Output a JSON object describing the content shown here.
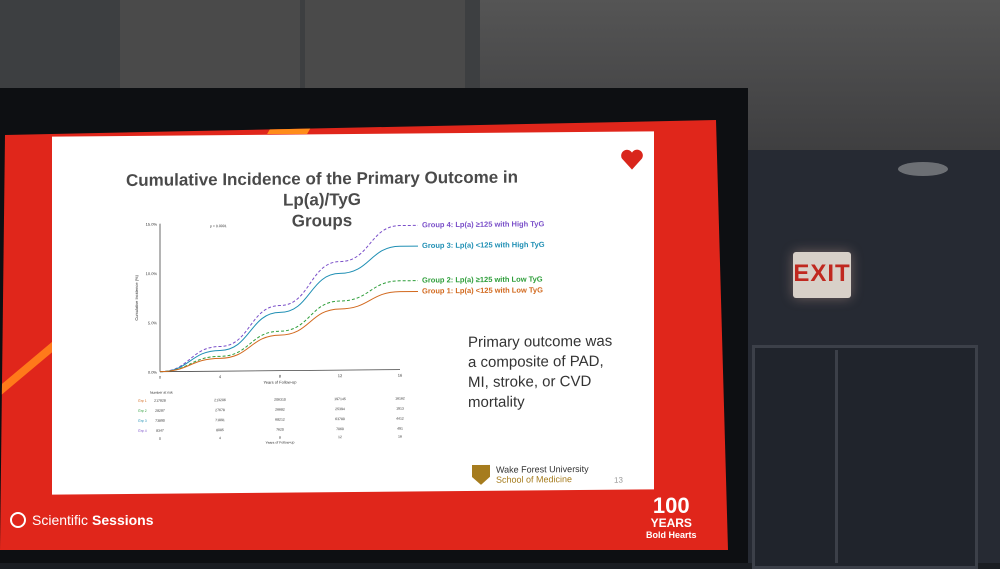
{
  "slide": {
    "title_line1": "Cumulative Incidence of the Primary Outcome in Lp(a)/TyG",
    "title_line2": "Groups",
    "outcome_text": [
      "Primary outcome was",
      "a composite of PAD,",
      "MI, stroke, or CVD",
      "mortality"
    ],
    "logo_university": "Wake Forest University",
    "logo_school": "School of Medicine",
    "page_number": "13"
  },
  "footer": {
    "brand_light": "Scientific",
    "brand_bold": "Sessions",
    "badge_line1": "100",
    "badge_line2": "YEARS",
    "badge_line3": "Bold Hearts"
  },
  "room": {
    "exit_sign": "EXIT"
  },
  "chart_data": {
    "type": "line",
    "ylabel": "Cumulative Incidence (%)",
    "xlabel": "Years of Follow-up",
    "pvalue": "p < 0.0001",
    "x": [
      0,
      4,
      8,
      12,
      16
    ],
    "x_ticks": [
      "0",
      "4",
      "8",
      "12",
      "16"
    ],
    "y_ticks": [
      "0.0%",
      "5.0%",
      "10.0%",
      "15.0%"
    ],
    "ylim": [
      0,
      15
    ],
    "series": [
      {
        "name": "Group 4: Lp(a) ≥125 with High TyG",
        "color": "#7a4fc9",
        "dash": true,
        "values": [
          0,
          2.5,
          6.6,
          11.0,
          14.6
        ]
      },
      {
        "name": "Group 3: Lp(a) <125 with High TyG",
        "color": "#1f8fb4",
        "dash": false,
        "values": [
          0,
          2.1,
          5.9,
          9.8,
          12.5
        ]
      },
      {
        "name": "Group 2: Lp(a) ≥125 with Low TyG",
        "color": "#2e9e3a",
        "dash": true,
        "values": [
          0,
          1.5,
          4.0,
          7.0,
          9.0
        ]
      },
      {
        "name": "Group 1: Lp(a) <125 with Low TyG",
        "color": "#d2691e",
        "dash": false,
        "values": [
          0,
          1.3,
          3.6,
          6.2,
          7.9
        ]
      }
    ],
    "risk_table": {
      "title": "Number at risk",
      "rows": [
        {
          "label": "Grp 1",
          "color": "#d2691e",
          "values": [
            "217828",
            "213206",
            "206310",
            "197145",
            "16162"
          ]
        },
        {
          "label": "Grp 2",
          "color": "#2e9e3a",
          "values": [
            "28287",
            "27678",
            "26682",
            "25394",
            "1913"
          ]
        },
        {
          "label": "Grp 3",
          "color": "#1f8fb4",
          "values": [
            "73890",
            "71891",
            "68212",
            "63780",
            "4412"
          ]
        },
        {
          "label": "Grp 4",
          "color": "#7a4fc9",
          "values": [
            "8347",
            "8085",
            "7620",
            "7060",
            "491"
          ]
        }
      ]
    }
  }
}
